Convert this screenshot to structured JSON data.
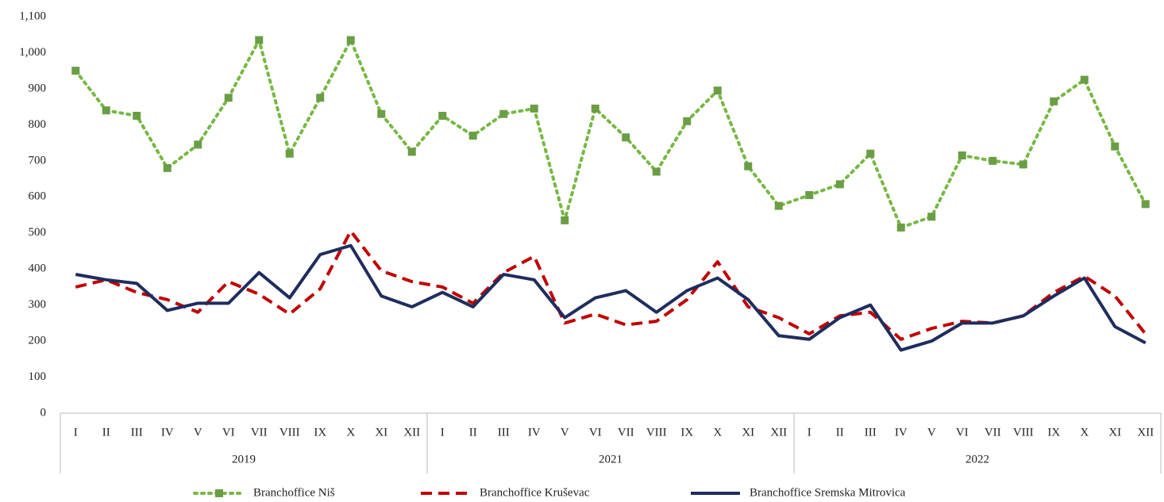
{
  "chart_data": {
    "type": "line",
    "categories": [
      "I",
      "II",
      "III",
      "IV",
      "V",
      "VI",
      "VII",
      "VIII",
      "IX",
      "X",
      "XI",
      "XII",
      "I",
      "II",
      "III",
      "IV",
      "V",
      "VI",
      "VII",
      "VIII",
      "IX",
      "X",
      "XI",
      "XII",
      "I",
      "II",
      "III",
      "IV",
      "V",
      "VI",
      "VII",
      "VIII",
      "IX",
      "X",
      "XI",
      "XII"
    ],
    "groups": [
      "2019",
      "2021",
      "2022"
    ],
    "ylim": [
      0,
      1100
    ],
    "yticks": [
      0,
      100,
      200,
      300,
      400,
      500,
      600,
      700,
      800,
      900,
      {
        "value": 1000,
        "label": "1,000"
      },
      {
        "value": 1100,
        "label": "1,100"
      }
    ],
    "series": [
      {
        "name": "Branchoffice Niš",
        "color": "#77b843",
        "marker_color": "#6a9e45",
        "style": "dotted",
        "values": [
          950,
          840,
          825,
          680,
          745,
          875,
          1035,
          720,
          875,
          1035,
          830,
          725,
          825,
          770,
          830,
          845,
          535,
          845,
          765,
          670,
          810,
          895,
          685,
          575,
          605,
          635,
          720,
          515,
          545,
          715,
          700,
          690,
          865,
          925,
          740,
          580
        ]
      },
      {
        "name": "Branchoffice Kruševac",
        "color": "#c00000",
        "style": "dashed",
        "values": [
          350,
          370,
          335,
          315,
          280,
          365,
          330,
          275,
          345,
          505,
          395,
          365,
          350,
          305,
          390,
          435,
          250,
          275,
          245,
          255,
          315,
          420,
          295,
          265,
          220,
          270,
          280,
          205,
          235,
          255,
          250,
          270,
          335,
          380,
          325,
          220
        ]
      },
      {
        "name": "Branchoffice Sremska Mitrovica",
        "color": "#1f2d5e",
        "style": "solid",
        "values": [
          385,
          370,
          360,
          285,
          305,
          305,
          390,
          320,
          440,
          465,
          325,
          295,
          335,
          295,
          385,
          370,
          265,
          320,
          340,
          280,
          340,
          375,
          315,
          215,
          205,
          265,
          300,
          175,
          200,
          250,
          250,
          270,
          325,
          375,
          240,
          195
        ]
      }
    ]
  }
}
